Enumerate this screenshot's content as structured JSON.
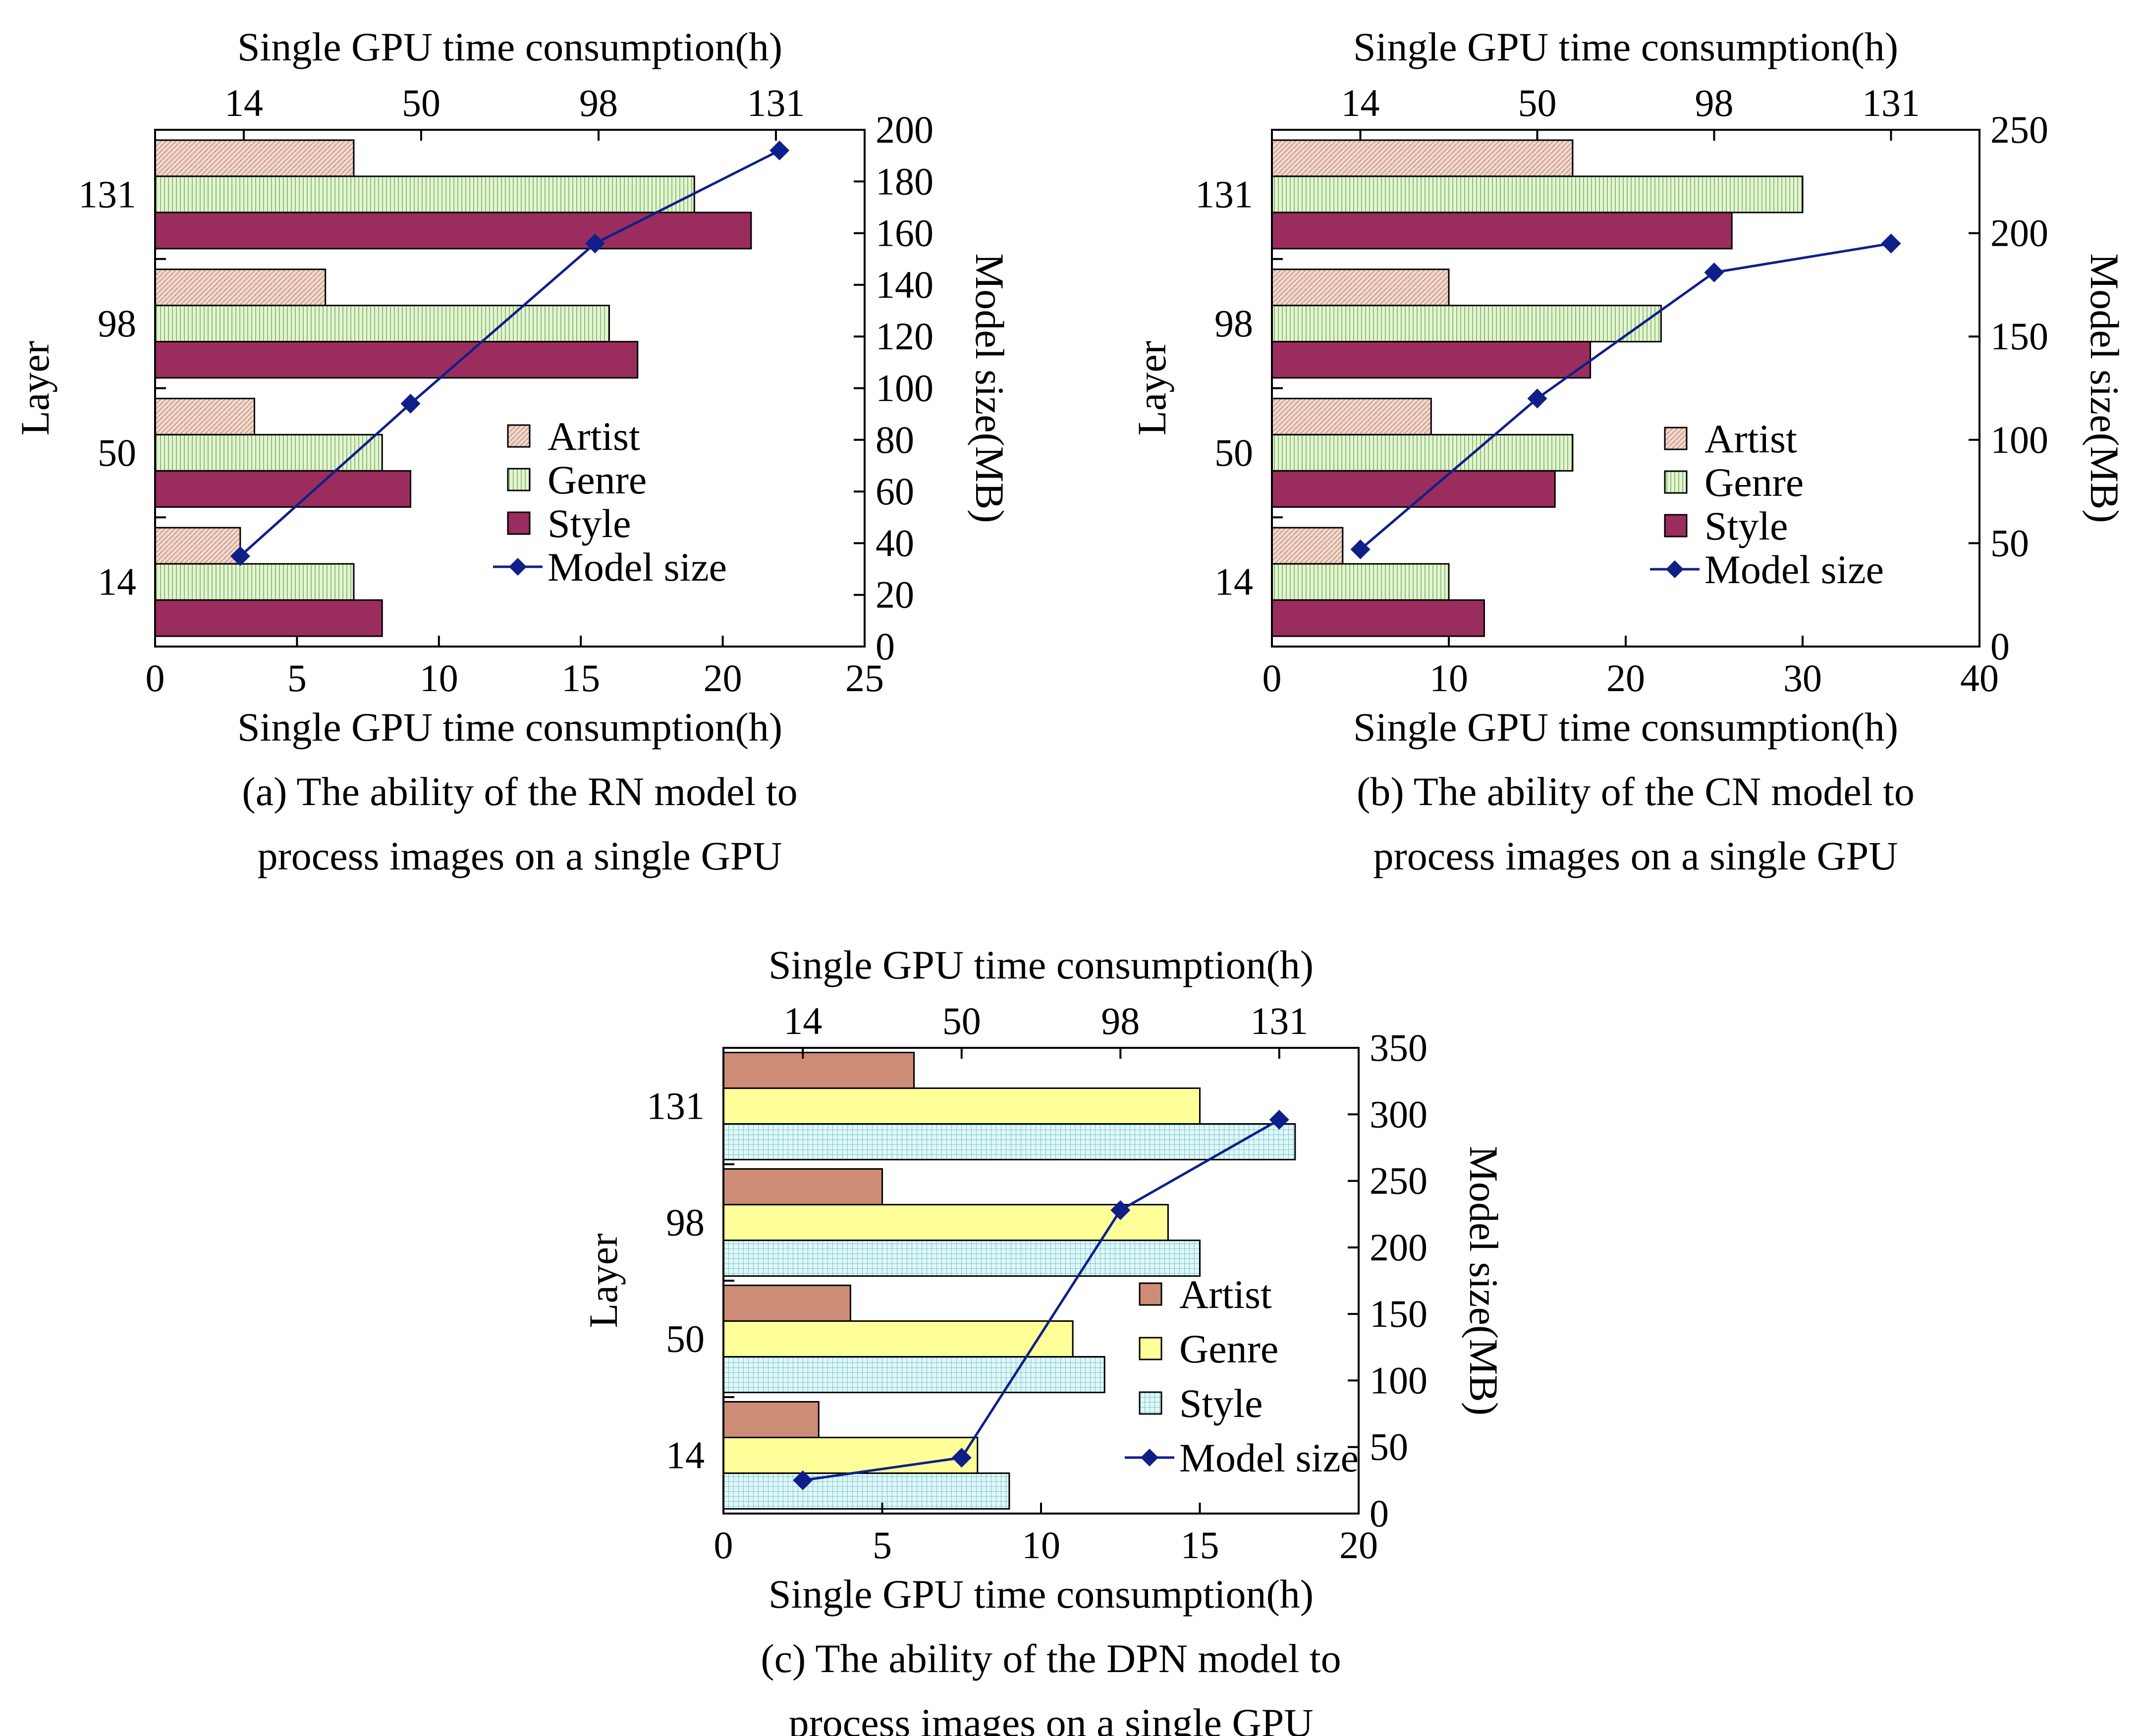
{
  "chart_data": [
    {
      "type": "bar",
      "orientation": "horizontal",
      "caption": [
        "(a) The ability of the RN model to",
        "process images on a single GPU"
      ],
      "xlabel": "Single GPU time consumption(h)",
      "x2label": "Single GPU time consumption(h)",
      "ylabel": "Layer",
      "y2label": "Model size(MB)",
      "categories": [
        "14",
        "50",
        "98",
        "131"
      ],
      "xlim": [
        0,
        25
      ],
      "xticks": [
        "0",
        "5",
        "10",
        "15",
        "20",
        "25"
      ],
      "top_ticks": [
        "14",
        "50",
        "98",
        "131"
      ],
      "y2lim": [
        0,
        200
      ],
      "y2ticks": [
        "0",
        "20",
        "40",
        "60",
        "80",
        "100",
        "120",
        "140",
        "160",
        "180",
        "200"
      ],
      "series": [
        {
          "name": "Artist",
          "color": "#e8c8b8",
          "values": [
            3,
            3.5,
            6,
            7
          ]
        },
        {
          "name": "Genre",
          "color": "#d4ecc0",
          "values": [
            7,
            8,
            16,
            19
          ]
        },
        {
          "name": "Style",
          "color": "#9b2d5e",
          "values": [
            8,
            9,
            17,
            21
          ]
        }
      ],
      "line": {
        "name": "Model size",
        "color": "#0f1f8a",
        "x": [
          3,
          9,
          15.5,
          22
        ],
        "y": [
          35,
          94,
          156,
          192
        ]
      },
      "legend_position": "center-right",
      "grid": false
    },
    {
      "type": "bar",
      "orientation": "horizontal",
      "caption": [
        "(b) The ability of the CN model to",
        "process images on a single GPU"
      ],
      "xlabel": "Single GPU time consumption(h)",
      "x2label": "Single GPU time consumption(h)",
      "ylabel": "Layer",
      "y2label": "Model size(MB)",
      "categories": [
        "14",
        "50",
        "98",
        "131"
      ],
      "xlim": [
        0,
        40
      ],
      "xticks": [
        "0",
        "10",
        "20",
        "30",
        "40"
      ],
      "top_ticks": [
        "14",
        "50",
        "98",
        "131"
      ],
      "y2lim": [
        0,
        250
      ],
      "y2ticks": [
        "0",
        "50",
        "100",
        "150",
        "200",
        "250"
      ],
      "series": [
        {
          "name": "Artist",
          "color": "#e8c8b8",
          "values": [
            4,
            9,
            10,
            17
          ]
        },
        {
          "name": "Genre",
          "color": "#d4ecc0",
          "values": [
            10,
            17,
            22,
            30
          ]
        },
        {
          "name": "Style",
          "color": "#9b2d5e",
          "values": [
            12,
            16,
            18,
            26
          ]
        }
      ],
      "line": {
        "name": "Model size",
        "color": "#0f1f8a",
        "x": [
          5,
          15,
          25,
          35
        ],
        "y": [
          47,
          120,
          181,
          195
        ]
      },
      "legend_position": "center-right",
      "grid": false
    },
    {
      "type": "bar",
      "orientation": "horizontal",
      "caption": [
        "(c) The ability of the DPN model to",
        "process images on a single GPU"
      ],
      "xlabel": "Single GPU time consumption(h)",
      "x2label": "Single GPU time consumption(h)",
      "ylabel": "Layer",
      "y2label": "Model size(MB)",
      "categories": [
        "14",
        "50",
        "98",
        "131"
      ],
      "xlim": [
        0,
        20
      ],
      "xticks": [
        "0",
        "5",
        "10",
        "15",
        "20"
      ],
      "top_ticks": [
        "14",
        "50",
        "98",
        "131"
      ],
      "y2lim": [
        0,
        350
      ],
      "y2ticks": [
        "0",
        "50",
        "100",
        "150",
        "200",
        "250",
        "300",
        "350"
      ],
      "series": [
        {
          "name": "Artist",
          "color": "#cd8c76",
          "values": [
            3,
            4,
            5,
            6
          ]
        },
        {
          "name": "Genre",
          "color": "#ffff99",
          "values": [
            8,
            11,
            14,
            15
          ]
        },
        {
          "name": "Style",
          "color": "#d6f3f3",
          "values": [
            9,
            12,
            15,
            18
          ]
        }
      ],
      "line": {
        "name": "Model size",
        "color": "#0f1f8a",
        "x": [
          2.5,
          7.5,
          12.5,
          17.5
        ],
        "y": [
          25,
          42,
          228,
          296
        ]
      },
      "legend_position": "bottom-right",
      "grid": false
    }
  ]
}
